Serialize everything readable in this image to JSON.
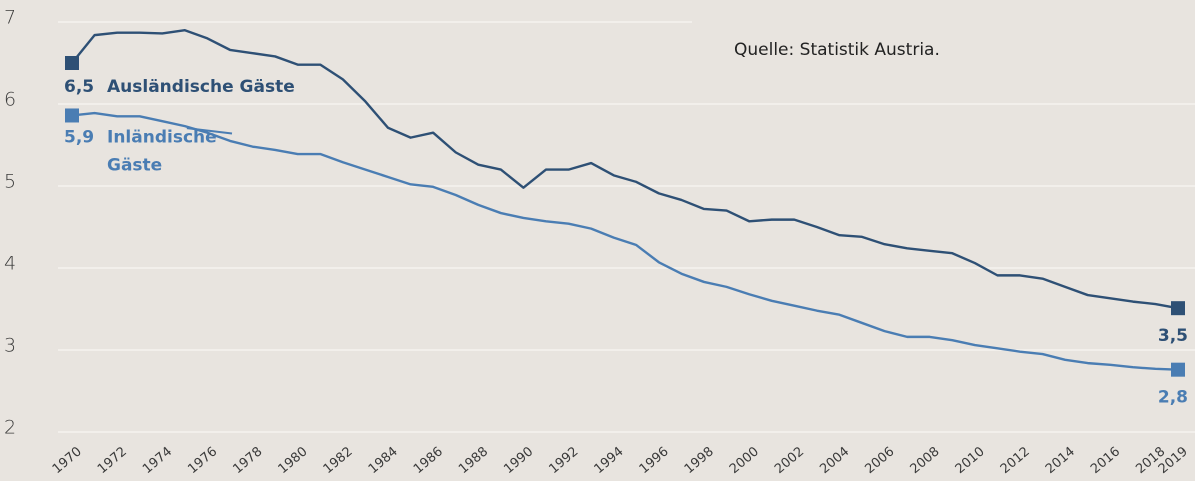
{
  "chart_data": {
    "type": "line",
    "source": "Quelle: Statistik Austria.",
    "x": [
      1970,
      1971,
      1972,
      1973,
      1974,
      1975,
      1976,
      1977,
      1978,
      1979,
      1980,
      1981,
      1982,
      1983,
      1984,
      1985,
      1986,
      1987,
      1988,
      1989,
      1990,
      1991,
      1992,
      1993,
      1994,
      1995,
      1996,
      1997,
      1998,
      1999,
      2000,
      2001,
      2002,
      2003,
      2004,
      2005,
      2006,
      2007,
      2008,
      2009,
      2010,
      2011,
      2012,
      2013,
      2014,
      2015,
      2016,
      2017,
      2018,
      2019
    ],
    "xlim": [
      1970,
      2019
    ],
    "xticks": [
      1970,
      1972,
      1974,
      1976,
      1978,
      1980,
      1982,
      1984,
      1986,
      1988,
      1990,
      1992,
      1994,
      1996,
      1998,
      2000,
      2002,
      2004,
      2006,
      2008,
      2010,
      2012,
      2014,
      2016,
      2018,
      2019
    ],
    "ylim": [
      2,
      7
    ],
    "yticks": [
      2,
      3,
      4,
      5,
      6,
      7
    ],
    "grid": true,
    "series": [
      {
        "name": "Ausländische Gäste",
        "color": "#2e5075",
        "values": [
          6.5,
          6.84,
          6.87,
          6.87,
          6.86,
          6.9,
          6.8,
          6.66,
          6.62,
          6.58,
          6.48,
          6.48,
          6.3,
          6.03,
          5.71,
          5.59,
          5.65,
          5.41,
          5.26,
          5.2,
          4.98,
          5.2,
          5.2,
          5.28,
          5.13,
          5.05,
          4.91,
          4.83,
          4.72,
          4.7,
          4.57,
          4.59,
          4.59,
          4.5,
          4.4,
          4.38,
          4.29,
          4.24,
          4.21,
          4.18,
          4.06,
          3.91,
          3.91,
          3.87,
          3.77,
          3.67,
          3.63,
          3.59,
          3.56,
          3.51
        ],
        "value_labels": [
          "6,5",
          null,
          null,
          null,
          null,
          null,
          null,
          null,
          null,
          null,
          null,
          null,
          null,
          null,
          null,
          null,
          null,
          null,
          null,
          null,
          null,
          null,
          null,
          null,
          null,
          null,
          null,
          null,
          null,
          null,
          null,
          null,
          null,
          null,
          null,
          null,
          null,
          null,
          null,
          null,
          null,
          null,
          null,
          null,
          null,
          null,
          null,
          null,
          null,
          "3,5"
        ]
      },
      {
        "name": "Inländische Gäste",
        "color": "#4a7db3",
        "values": [
          5.86,
          5.89,
          5.85,
          5.85,
          5.79,
          5.73,
          5.65,
          5.55,
          5.48,
          5.44,
          5.39,
          5.39,
          5.29,
          5.2,
          5.11,
          5.02,
          4.99,
          4.89,
          4.77,
          4.67,
          4.61,
          4.57,
          4.54,
          4.48,
          4.37,
          4.28,
          4.07,
          3.93,
          3.83,
          3.77,
          3.68,
          3.6,
          3.54,
          3.48,
          3.43,
          3.33,
          3.23,
          3.16,
          3.16,
          3.12,
          3.06,
          3.02,
          2.98,
          2.95,
          2.88,
          2.84,
          2.82,
          2.79,
          2.77,
          2.76
        ],
        "value_labels": [
          "5,9",
          null,
          null,
          null,
          null,
          null,
          null,
          null,
          null,
          null,
          null,
          null,
          null,
          null,
          null,
          null,
          null,
          null,
          null,
          null,
          null,
          null,
          null,
          null,
          null,
          null,
          null,
          null,
          null,
          null,
          null,
          null,
          null,
          null,
          null,
          null,
          null,
          null,
          null,
          null,
          null,
          null,
          null,
          null,
          null,
          null,
          null,
          null,
          null,
          "2,8"
        ]
      }
    ]
  }
}
